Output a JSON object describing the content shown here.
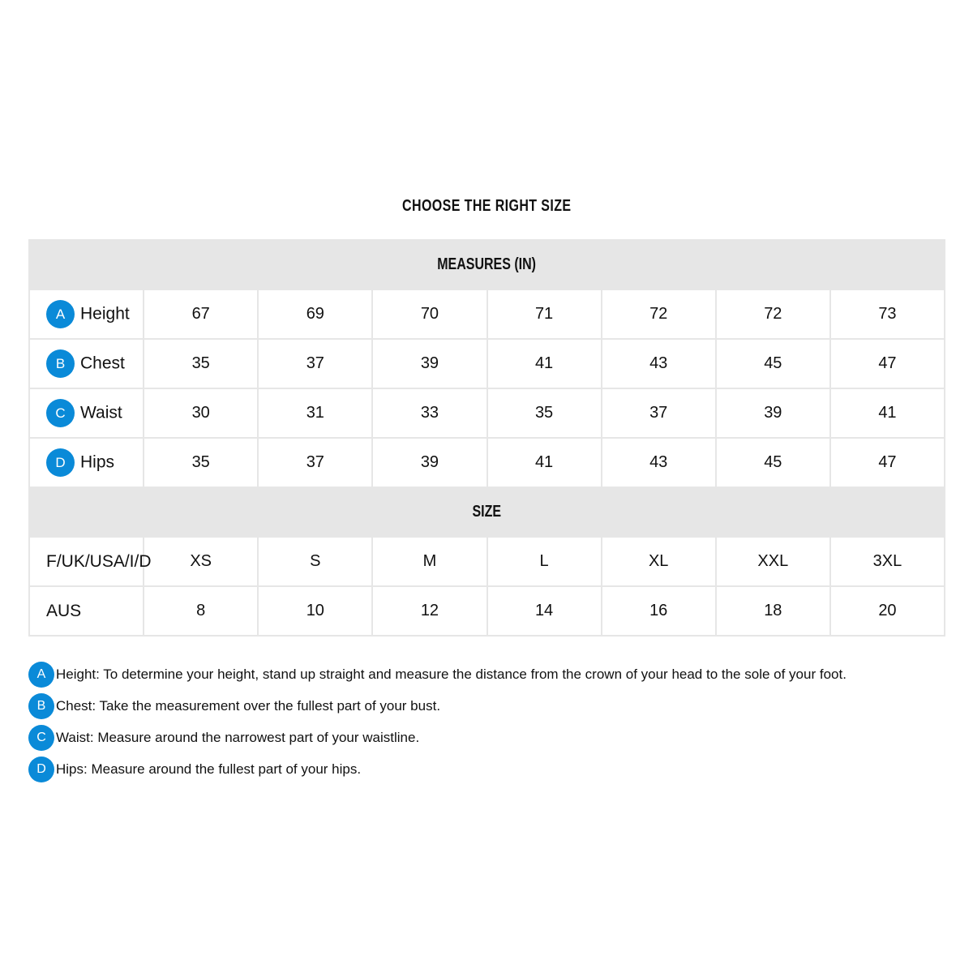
{
  "title": "CHOOSE THE RIGHT SIZE",
  "accent_color": "#0a8ad8",
  "measures_header": "MEASURES (IN)",
  "measures": [
    {
      "badge": "A",
      "label": "Height",
      "values": [
        "67",
        "69",
        "70",
        "71",
        "72",
        "72",
        "73"
      ]
    },
    {
      "badge": "B",
      "label": "Chest",
      "values": [
        "35",
        "37",
        "39",
        "41",
        "43",
        "45",
        "47"
      ]
    },
    {
      "badge": "C",
      "label": "Waist",
      "values": [
        "30",
        "31",
        "33",
        "35",
        "37",
        "39",
        "41"
      ]
    },
    {
      "badge": "D",
      "label": "Hips",
      "values": [
        "35",
        "37",
        "39",
        "41",
        "43",
        "45",
        "47"
      ]
    }
  ],
  "size_header": "SIZE",
  "sizes": [
    {
      "label": "F/UK/USA/I/D",
      "values": [
        "XS",
        "S",
        "M",
        "L",
        "XL",
        "XXL",
        "3XL"
      ]
    },
    {
      "label": "AUS",
      "values": [
        "8",
        "10",
        "12",
        "14",
        "16",
        "18",
        "20"
      ]
    }
  ],
  "notes": [
    {
      "badge": "A",
      "text": "Height: To determine your height, stand up straight and measure the distance from the crown of your head to the sole of your foot."
    },
    {
      "badge": "B",
      "text": "Chest: Take the measurement over the fullest part of your bust."
    },
    {
      "badge": "C",
      "text": "Waist: Measure around the narrowest part of your waistline."
    },
    {
      "badge": "D",
      "text": "Hips: Measure around the fullest part of your hips."
    }
  ]
}
